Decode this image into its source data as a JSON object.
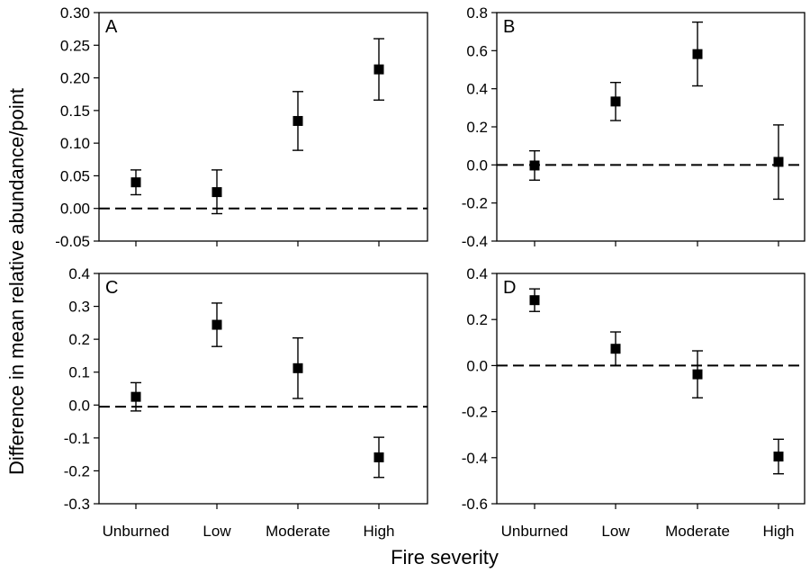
{
  "figure": {
    "xlabel": "Fire severity",
    "ylabel": "Difference in mean relative abundance/point"
  },
  "chart_data": [
    {
      "type": "scatter",
      "panel": "A",
      "categories": [
        "Unburned",
        "Low",
        "Moderate",
        "High"
      ],
      "values": [
        0.04,
        0.025,
        0.134,
        0.213
      ],
      "error_lower": [
        0.021,
        -0.008,
        0.089,
        0.166
      ],
      "error_upper": [
        0.059,
        0.059,
        0.179,
        0.26
      ],
      "reference_line": 0,
      "ylim": [
        -0.05,
        0.3
      ],
      "yticks": [
        -0.05,
        0.0,
        0.05,
        0.1,
        0.15,
        0.2,
        0.25,
        0.3
      ],
      "ytick_labels": [
        "-0.05",
        "0.00",
        "0.05",
        "0.10",
        "0.15",
        "0.20",
        "0.25",
        "0.30"
      ]
    },
    {
      "type": "scatter",
      "panel": "B",
      "categories": [
        "Unburned",
        "Low",
        "Moderate",
        "High"
      ],
      "values": [
        -0.003,
        0.333,
        0.582,
        0.016
      ],
      "error_lower": [
        -0.08,
        0.233,
        0.415,
        -0.18
      ],
      "error_upper": [
        0.074,
        0.433,
        0.75,
        0.21
      ],
      "reference_line": 0,
      "ylim": [
        -0.4,
        0.8
      ],
      "yticks": [
        -0.4,
        -0.2,
        0.0,
        0.2,
        0.4,
        0.6,
        0.8
      ],
      "ytick_labels": [
        "-0.4",
        "-0.2",
        "0.0",
        "0.2",
        "0.4",
        "0.6",
        "0.8"
      ]
    },
    {
      "type": "scatter",
      "panel": "C",
      "categories": [
        "Unburned",
        "Low",
        "Moderate",
        "High"
      ],
      "values": [
        0.025,
        0.244,
        0.112,
        -0.159
      ],
      "error_lower": [
        -0.018,
        0.178,
        0.02,
        -0.22
      ],
      "error_upper": [
        0.068,
        0.31,
        0.204,
        -0.098
      ],
      "reference_line": -0.005,
      "ylim": [
        -0.3,
        0.4
      ],
      "yticks": [
        -0.3,
        -0.2,
        -0.1,
        0.0,
        0.1,
        0.2,
        0.3,
        0.4
      ],
      "ytick_labels": [
        "-0.3",
        "-0.2",
        "-0.1",
        "0.0",
        "0.1",
        "0.2",
        "0.3",
        "0.4"
      ]
    },
    {
      "type": "scatter",
      "panel": "D",
      "categories": [
        "Unburned",
        "Low",
        "Moderate",
        "High"
      ],
      "values": [
        0.284,
        0.073,
        -0.038,
        -0.395
      ],
      "error_lower": [
        0.235,
        0.0,
        -0.14,
        -0.47
      ],
      "error_upper": [
        0.333,
        0.146,
        0.064,
        -0.32
      ],
      "reference_line": 0,
      "ylim": [
        -0.6,
        0.4
      ],
      "yticks": [
        -0.6,
        -0.4,
        -0.2,
        0.0,
        0.2,
        0.4
      ],
      "ytick_labels": [
        "-0.6",
        "-0.4",
        "-0.2",
        "0.0",
        "0.2",
        "0.4"
      ]
    }
  ]
}
